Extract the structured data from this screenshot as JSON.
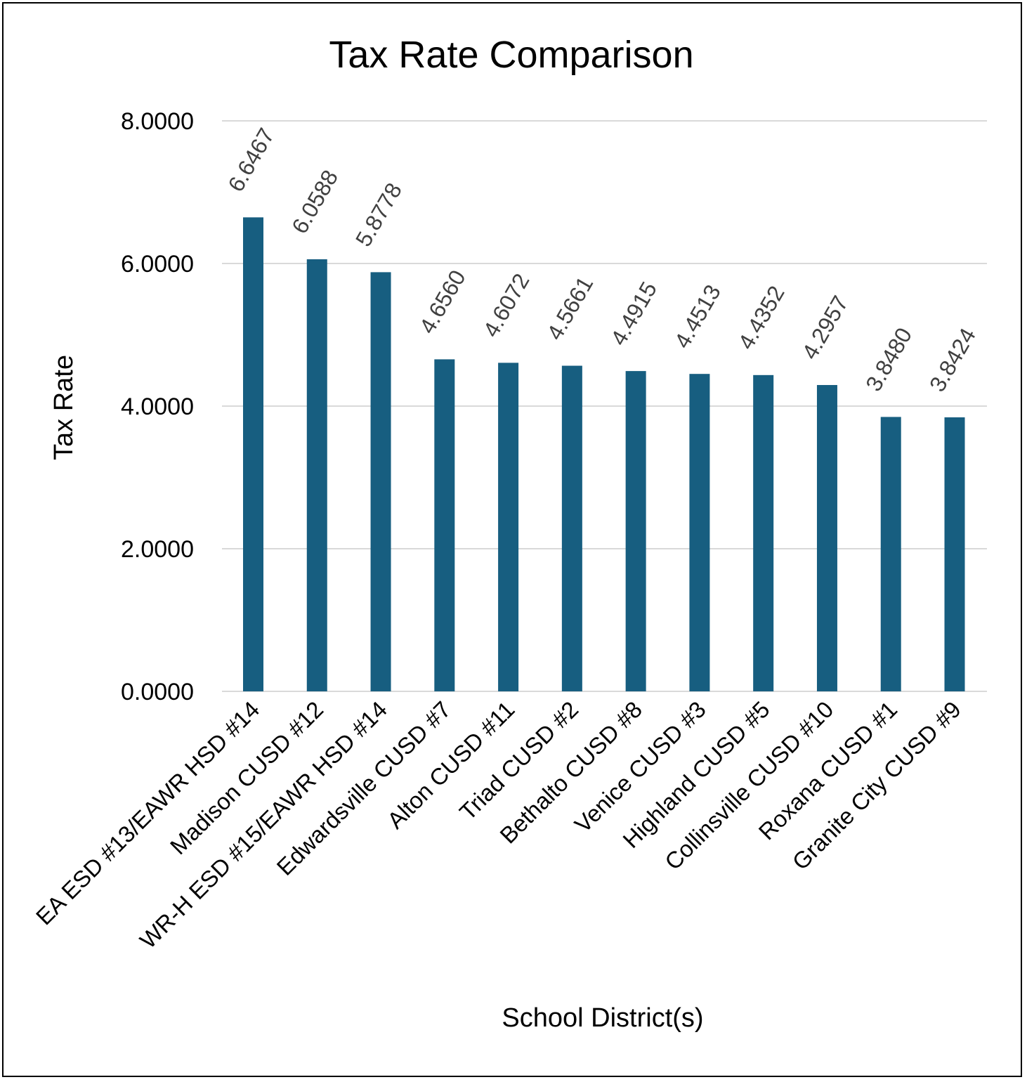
{
  "chart_data": {
    "type": "bar",
    "title": "Tax Rate Comparison",
    "xlabel": "School District(s)",
    "ylabel": "Tax Rate",
    "ylim": [
      0,
      8
    ],
    "y_ticks": [
      "0.0000",
      "2.0000",
      "4.0000",
      "6.0000",
      "8.0000"
    ],
    "y_tick_values": [
      0,
      2,
      4,
      6,
      8
    ],
    "grid": true,
    "bar_color": "#175e80",
    "categories": [
      "EA ESD #13/EAWR HSD #14",
      "Madison CUSD #12",
      "WR-H ESD #15/EAWR HSD #14",
      "Edwardsville CUSD #7",
      "Alton CUSD #11",
      "Triad CUSD #2",
      "Bethalto CUSD #8",
      "Venice CUSD #3",
      "Highland CUSD #5",
      "Collinsville CUSD #10",
      "Roxana CUSD #1",
      "Granite City CUSD #9"
    ],
    "values": [
      6.6467,
      6.0588,
      5.8778,
      4.656,
      4.6072,
      4.5661,
      4.4915,
      4.4513,
      4.4352,
      4.2957,
      3.848,
      3.8424
    ],
    "data_labels": [
      "6.6467",
      "6.0588",
      "5.8778",
      "4.6560",
      "4.6072",
      "4.5661",
      "4.4915",
      "4.4513",
      "4.4352",
      "4.2957",
      "3.8480",
      "3.8424"
    ]
  }
}
